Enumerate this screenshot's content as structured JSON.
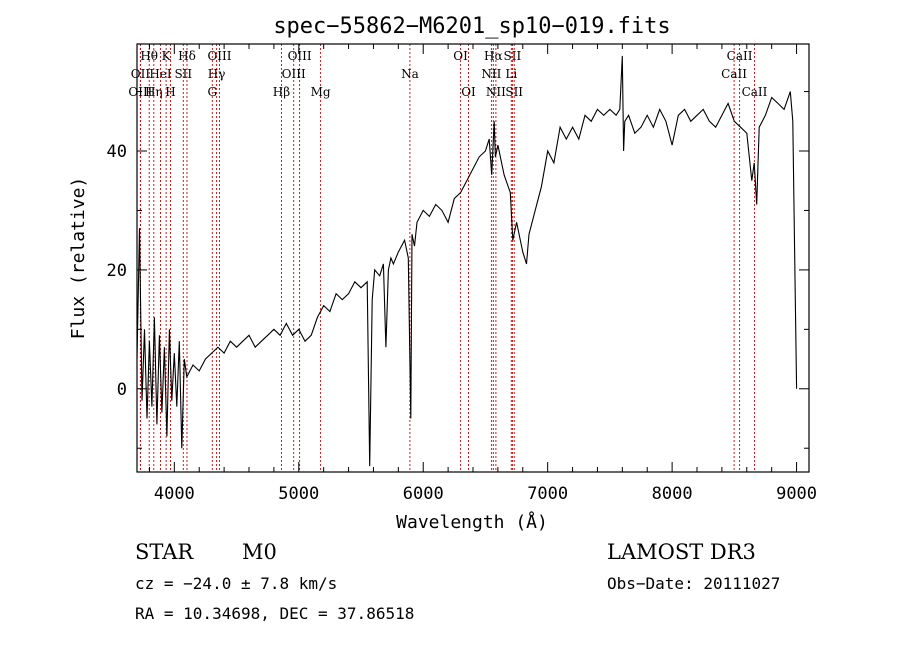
{
  "chart_data": {
    "type": "line",
    "title": "spec−55862−M6201_sp10−019.fits",
    "xlabel": "Wavelength (Å)",
    "ylabel": "Flux (relative)",
    "xlim": [
      3700,
      9100
    ],
    "ylim": [
      -14,
      58
    ],
    "x_ticks": [
      4000,
      5000,
      6000,
      7000,
      8000,
      9000
    ],
    "y_ticks": [
      0,
      20,
      40
    ],
    "series": [
      {
        "name": "flux",
        "x": [
          3700,
          3720,
          3740,
          3760,
          3780,
          3800,
          3820,
          3840,
          3860,
          3880,
          3900,
          3920,
          3940,
          3960,
          3980,
          4000,
          4020,
          4040,
          4060,
          4080,
          4100,
          4150,
          4200,
          4250,
          4300,
          4350,
          4400,
          4450,
          4500,
          4550,
          4600,
          4650,
          4700,
          4750,
          4800,
          4850,
          4900,
          4950,
          5000,
          5050,
          5100,
          5150,
          5200,
          5250,
          5300,
          5350,
          5400,
          5450,
          5500,
          5550,
          5570,
          5590,
          5610,
          5650,
          5680,
          5700,
          5720,
          5740,
          5760,
          5800,
          5850,
          5880,
          5900,
          5910,
          5930,
          5950,
          6000,
          6050,
          6100,
          6150,
          6200,
          6250,
          6300,
          6350,
          6400,
          6450,
          6500,
          6530,
          6550,
          6570,
          6580,
          6600,
          6650,
          6700,
          6720,
          6750,
          6800,
          6830,
          6850,
          6900,
          6950,
          7000,
          7050,
          7100,
          7150,
          7200,
          7250,
          7300,
          7350,
          7400,
          7450,
          7500,
          7550,
          7580,
          7600,
          7610,
          7620,
          7650,
          7700,
          7750,
          7800,
          7850,
          7900,
          7950,
          8000,
          8050,
          8100,
          8150,
          8200,
          8250,
          8300,
          8350,
          8400,
          8450,
          8500,
          8550,
          8600,
          8640,
          8660,
          8680,
          8700,
          8750,
          8800,
          8850,
          8900,
          8950,
          8970,
          8990,
          9000
        ],
        "values": [
          5,
          27,
          -2,
          10,
          -5,
          8,
          -3,
          12,
          -6,
          9,
          -4,
          7,
          -8,
          10,
          -2,
          6,
          -3,
          8,
          -10,
          5,
          2,
          4,
          3,
          5,
          6,
          7,
          6,
          8,
          7,
          8,
          9,
          7,
          8,
          9,
          10,
          9,
          11,
          9,
          10,
          8,
          9,
          12,
          14,
          13,
          16,
          15,
          16,
          18,
          17,
          18,
          -13,
          15,
          20,
          19,
          21,
          7,
          20,
          22,
          21,
          23,
          25,
          22,
          -5,
          26,
          24,
          28,
          30,
          29,
          31,
          30,
          28,
          32,
          33,
          35,
          37,
          39,
          40,
          42,
          36,
          45,
          39,
          41,
          36,
          33,
          25,
          28,
          23,
          21,
          26,
          30,
          34,
          40,
          38,
          44,
          42,
          44,
          42,
          46,
          45,
          47,
          46,
          47,
          46,
          47,
          56,
          40,
          45,
          46,
          43,
          44,
          46,
          44,
          47,
          45,
          41,
          46,
          47,
          45,
          46,
          47,
          45,
          44,
          46,
          48,
          45,
          44,
          43,
          35,
          38,
          31,
          44,
          46,
          49,
          48,
          47,
          50,
          45,
          15,
          0
        ]
      }
    ],
    "line_markers": [
      {
        "name": "Hθ",
        "wl": 3798,
        "row": 0
      },
      {
        "name": "OII",
        "wl": 3727,
        "row": 1
      },
      {
        "name": "OIII",
        "wl": 3727,
        "row": 2
      },
      {
        "name": "K",
        "wl": 3934,
        "row": 0
      },
      {
        "name": "HeI",
        "wl": 3889,
        "row": 1
      },
      {
        "name": "Hη",
        "wl": 3835,
        "row": 2
      },
      {
        "name": "H",
        "wl": 3969,
        "row": 2
      },
      {
        "name": "Hδ",
        "wl": 4102,
        "row": 0
      },
      {
        "name": "SII",
        "wl": 4072,
        "row": 1
      },
      {
        "name": "OIII",
        "wl": 4363,
        "row": 0
      },
      {
        "name": "Hγ",
        "wl": 4340,
        "row": 1
      },
      {
        "name": "G",
        "wl": 4305,
        "row": 2
      },
      {
        "name": "Hβ",
        "wl": 4861,
        "row": 2
      },
      {
        "name": "OIII",
        "wl": 5007,
        "row": 0
      },
      {
        "name": "OIII",
        "wl": 4959,
        "row": 1
      },
      {
        "name": "Mg",
        "wl": 5175,
        "row": 2
      },
      {
        "name": "Na",
        "wl": 5893,
        "row": 1
      },
      {
        "name": "OI",
        "wl": 6300,
        "row": 0
      },
      {
        "name": "OI",
        "wl": 6364,
        "row": 2
      },
      {
        "name": "Hα",
        "wl": 6563,
        "row": 0
      },
      {
        "name": "NII",
        "wl": 6548,
        "row": 1
      },
      {
        "name": "NII",
        "wl": 6584,
        "row": 2
      },
      {
        "name": "SII",
        "wl": 6717,
        "row": 0
      },
      {
        "name": "Li",
        "wl": 6708,
        "row": 1
      },
      {
        "name": "SII",
        "wl": 6731,
        "row": 2
      },
      {
        "name": "CaII",
        "wl": 8542,
        "row": 0
      },
      {
        "name": "CaII",
        "wl": 8498,
        "row": 1
      },
      {
        "name": "CaII",
        "wl": 8662,
        "row": 2
      }
    ]
  },
  "info": {
    "object_class": "STAR",
    "subclass": "M0",
    "survey": "LAMOST DR3",
    "cz": "cz = −24.0 ± 7.8 km/s",
    "obs_date": "Obs−Date: 20111027",
    "coords": "RA =  10.34698, DEC =  37.86518"
  },
  "colors": {
    "line_marker": "#cc0000",
    "spectrum": "#000000"
  }
}
